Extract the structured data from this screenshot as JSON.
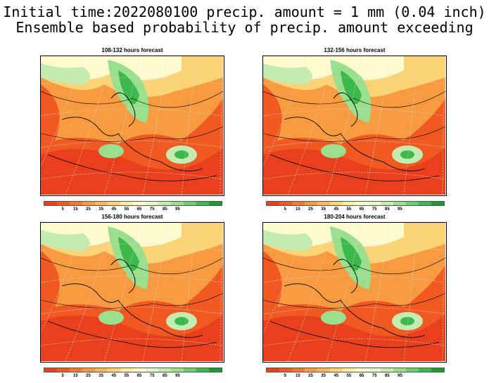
{
  "header": {
    "line1": "Initial time:2022080100 precip. amount = 1 mm (0.04 inch)",
    "line2": "Ensemble based probability of precip. amount exceeding"
  },
  "panels": [
    {
      "title": "108-132 hours forecast"
    },
    {
      "title": "132-156 hours forecast"
    },
    {
      "title": "156-180 hours forecast"
    },
    {
      "title": "180-204 hours forecast"
    }
  ],
  "colorbar": {
    "labels": [
      "5",
      "15",
      "25",
      "35",
      "45",
      "55",
      "65",
      "75",
      "85",
      "95"
    ],
    "colors": [
      "#e8401c",
      "#f05a22",
      "#f47a2e",
      "#f79a40",
      "#fab858",
      "#fcd477",
      "#feef9f",
      "#fffbd0",
      "#e6f5d0",
      "#c4ebb0",
      "#9adf8e",
      "#6ccf6c",
      "#3cb84c",
      "#1a9a34"
    ]
  }
}
